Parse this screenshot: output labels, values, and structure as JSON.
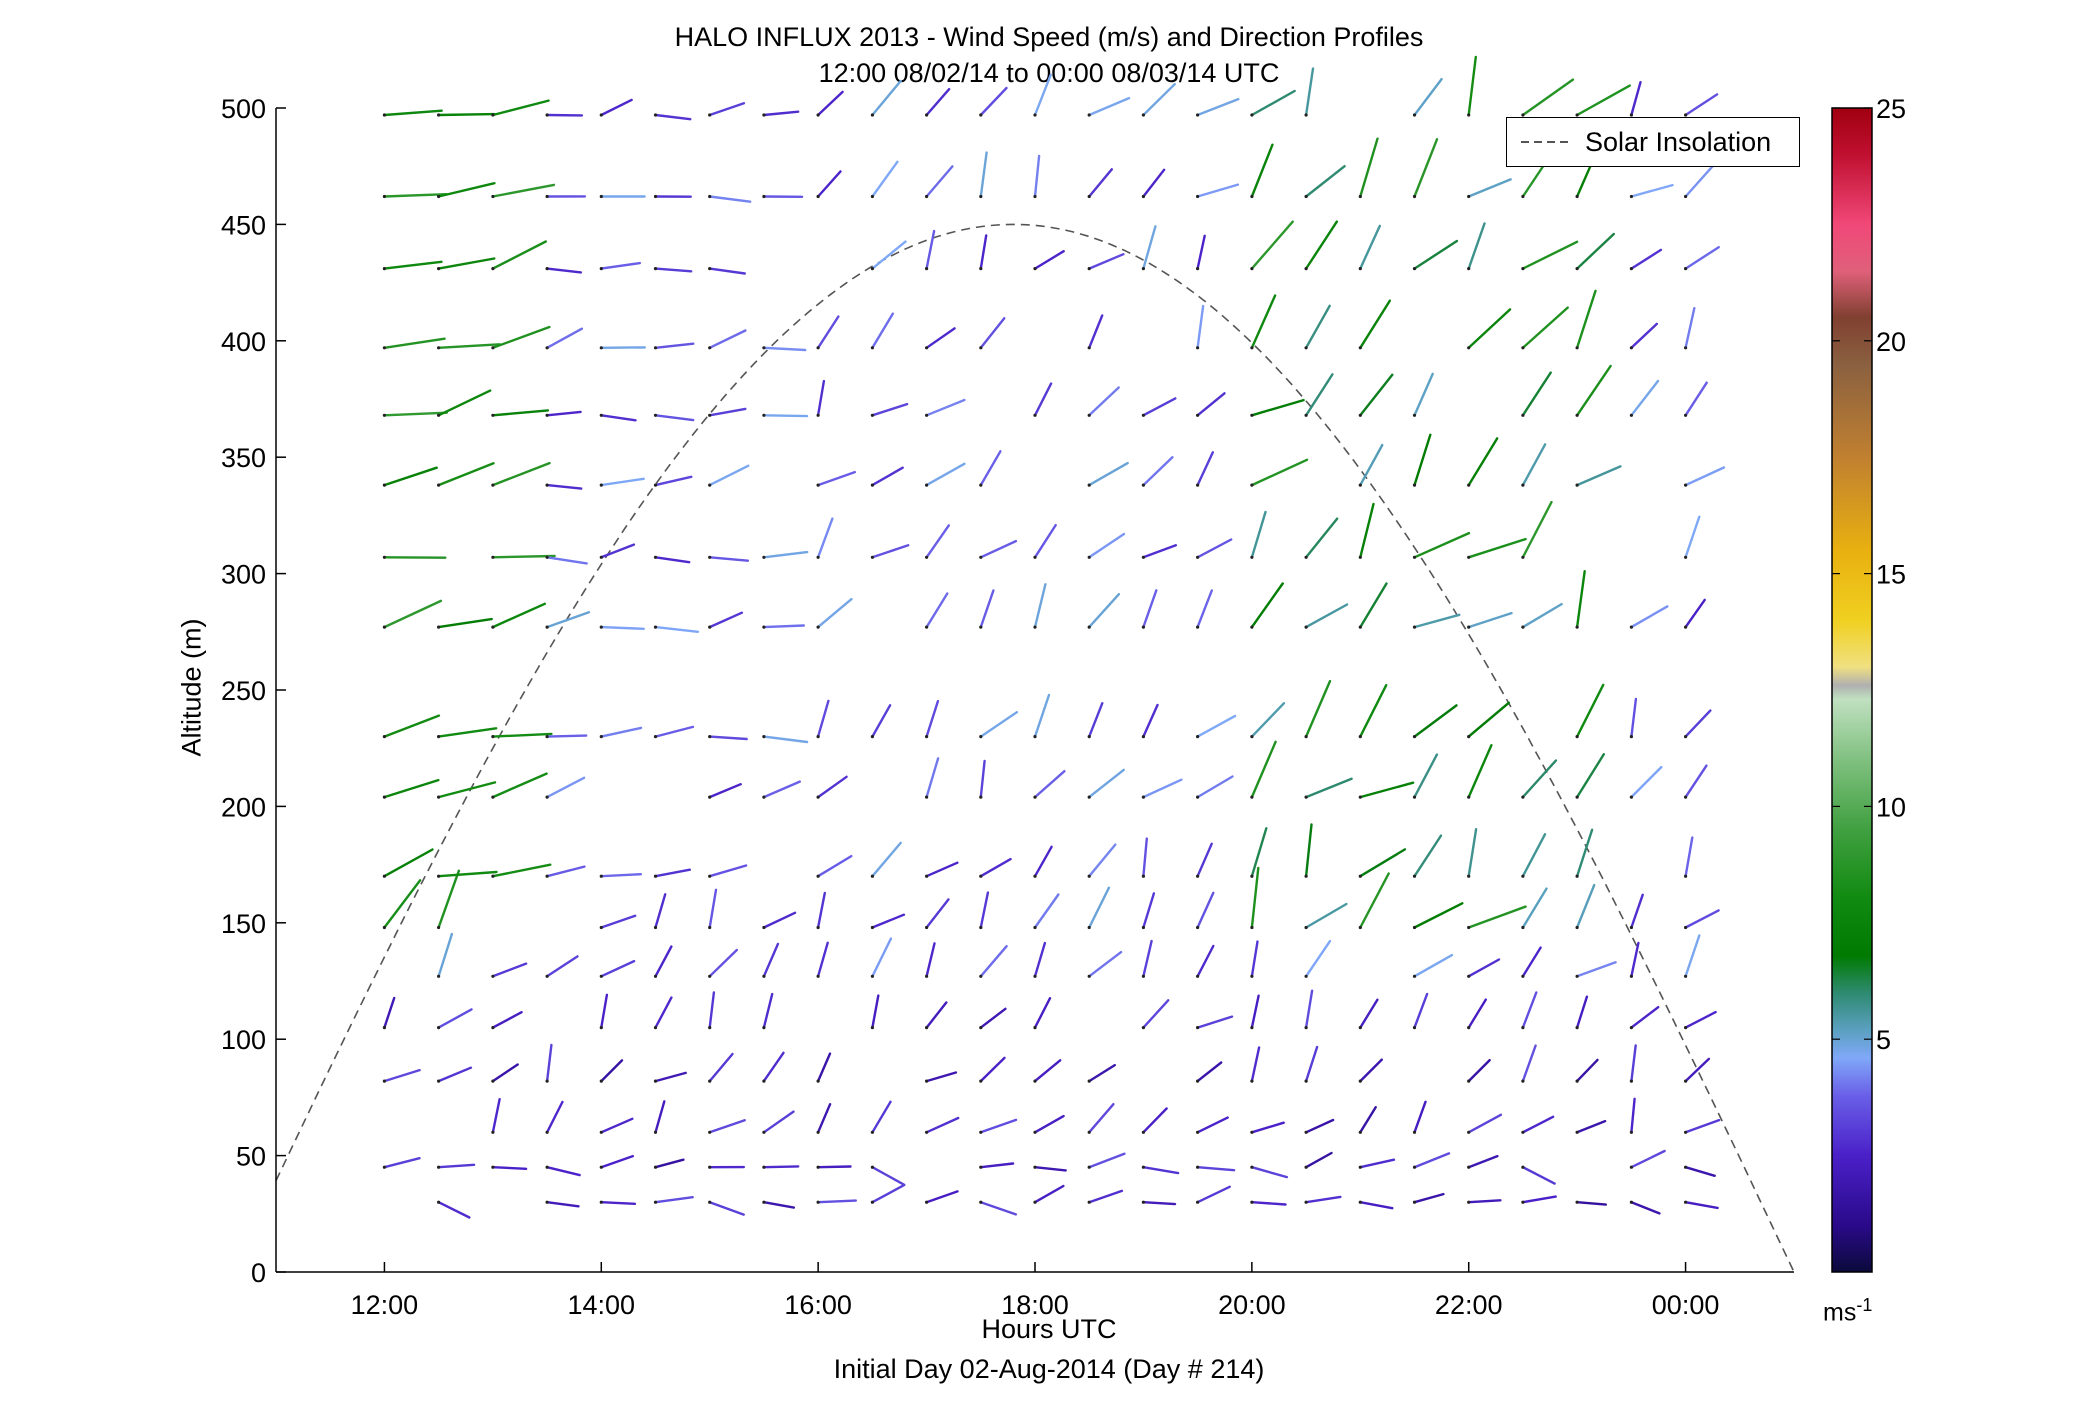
{
  "chart_data": {
    "type": "wind-barb-profile",
    "title": "HALO INFLUX 2013 - Wind Speed (m/s) and Direction Profiles",
    "subtitle": "12:00 08/02/14 to 00:00 08/03/14  UTC",
    "xlabel": "Hours UTC",
    "ylabel": "Altitude (m)",
    "footer": "Initial Day 02-Aug-2014 (Day # 214)",
    "xlim": [
      11,
      25
    ],
    "ylim": [
      0,
      500
    ],
    "x_ticks": [
      12,
      14,
      16,
      18,
      20,
      22,
      24
    ],
    "x_tick_labels": [
      "12:00",
      "14:00",
      "16:00",
      "18:00",
      "20:00",
      "22:00",
      "00:00"
    ],
    "y_ticks": [
      0,
      50,
      100,
      150,
      200,
      250,
      300,
      350,
      400,
      450,
      500
    ],
    "y_tick_labels": [
      "0",
      "50",
      "100",
      "150",
      "200",
      "250",
      "300",
      "350",
      "400",
      "450",
      "500"
    ],
    "colorbar": {
      "range": [
        0,
        25
      ],
      "ticks": [
        5,
        10,
        15,
        20,
        25
      ],
      "tick_labels": [
        "5",
        "10",
        "15",
        "20",
        "25"
      ],
      "unit_label": "ms",
      "unit_exponent": "-1"
    },
    "legend": {
      "entries": [
        "Solar Insolation"
      ],
      "location": "top-right"
    },
    "solar_insolation": {
      "peak_time": 17.8,
      "peak_altitude": 450,
      "line_style": "dashed",
      "color": "#555555"
    },
    "times": [
      12,
      12.5,
      13,
      13.5,
      14,
      14.5,
      15,
      15.5,
      16,
      16.5,
      17,
      17.5,
      18,
      18.5,
      19,
      19.5,
      20,
      20.5,
      21,
      21.5,
      22,
      22.5,
      23,
      23.5,
      24
    ],
    "altitudes": [
      30,
      45,
      60,
      82,
      105,
      127,
      148,
      170,
      204,
      230,
      277,
      307,
      338,
      368,
      397,
      431,
      462,
      497
    ]
  }
}
